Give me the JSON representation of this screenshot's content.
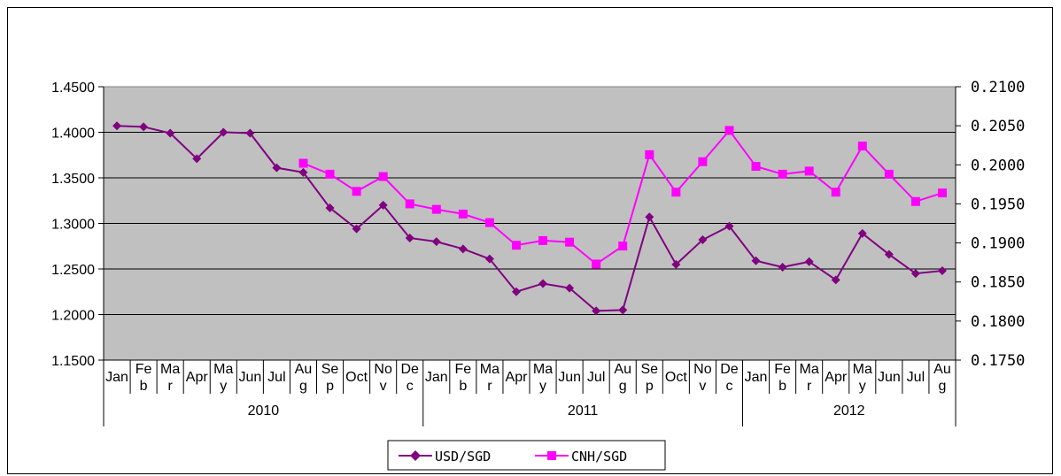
{
  "chart_data": {
    "type": "line",
    "months": [
      "Jan",
      "Feb",
      "Mar",
      "Apr",
      "May",
      "Jun",
      "Jul",
      "Aug",
      "Sep",
      "Oct",
      "Nov",
      "Dec",
      "Jan",
      "Feb",
      "Mar",
      "Apr",
      "May",
      "Jun",
      "Jul",
      "Aug",
      "Sep",
      "Oct",
      "Nov",
      "Dec",
      "Jan",
      "Feb",
      "Mar",
      "Apr",
      "May",
      "Jun",
      "Jul",
      "Aug"
    ],
    "month_labels": [
      [
        "Jan"
      ],
      [
        "Fe",
        "b"
      ],
      [
        "Ma",
        "r"
      ],
      [
        "Apr"
      ],
      [
        "Ma",
        "y"
      ],
      [
        "Jun"
      ],
      [
        "Jul"
      ],
      [
        "Au",
        "g"
      ],
      [
        "Se",
        "p"
      ],
      [
        "Oct"
      ],
      [
        "No",
        "v"
      ],
      [
        "De",
        "c"
      ],
      [
        "Jan"
      ],
      [
        "Fe",
        "b"
      ],
      [
        "Ma",
        "r"
      ],
      [
        "Apr"
      ],
      [
        "Ma",
        "y"
      ],
      [
        "Jun"
      ],
      [
        "Jul"
      ],
      [
        "Au",
        "g"
      ],
      [
        "Se",
        "p"
      ],
      [
        "Oct"
      ],
      [
        "No",
        "v"
      ],
      [
        "De",
        "c"
      ],
      [
        "Jan"
      ],
      [
        "Fe",
        "b"
      ],
      [
        "Ma",
        "r"
      ],
      [
        "Apr"
      ],
      [
        "Ma",
        "y"
      ],
      [
        "Jun"
      ],
      [
        "Jul"
      ],
      [
        "Au",
        "g"
      ]
    ],
    "years": [
      "2010",
      "2011",
      "2012"
    ],
    "y_left": {
      "ticks": [
        "1.1500",
        "1.2000",
        "1.2500",
        "1.3000",
        "1.3500",
        "1.4000",
        "1.4500"
      ],
      "lim": [
        1.15,
        1.45
      ]
    },
    "y_right": {
      "ticks": [
        "0.1750",
        "0.1800",
        "0.1850",
        "0.1900",
        "0.1950",
        "0.2000",
        "0.2050",
        "0.2100"
      ],
      "lim": [
        0.175,
        0.21
      ]
    },
    "series": [
      {
        "name": "USD/SGD",
        "axis": "left",
        "color": "#800080",
        "marker": "diamond",
        "start_index": 0,
        "values": [
          1.407,
          1.406,
          1.399,
          1.371,
          1.4,
          1.399,
          1.361,
          1.356,
          1.317,
          1.294,
          1.32,
          1.284,
          1.28,
          1.272,
          1.261,
          1.225,
          1.234,
          1.229,
          1.204,
          1.205,
          1.307,
          1.255,
          1.282,
          1.297,
          1.259,
          1.252,
          1.258,
          1.238,
          1.289,
          1.266,
          1.245,
          1.248
        ]
      },
      {
        "name": "CNH/SGD",
        "axis": "right",
        "color": "#ff00ff",
        "marker": "square",
        "start_index": 7,
        "values": [
          0.2002,
          0.1988,
          0.1966,
          0.1985,
          0.195,
          0.1943,
          0.1937,
          0.1926,
          0.1897,
          0.1903,
          0.1901,
          0.1873,
          0.1896,
          0.2013,
          0.1965,
          0.2004,
          0.2044,
          0.1998,
          0.1988,
          0.1992,
          0.1965,
          0.2024,
          0.1988,
          0.1953,
          0.1964
        ]
      }
    ],
    "grid": true,
    "legend_position": "bottom",
    "plot_background": "#c0c0c0"
  }
}
